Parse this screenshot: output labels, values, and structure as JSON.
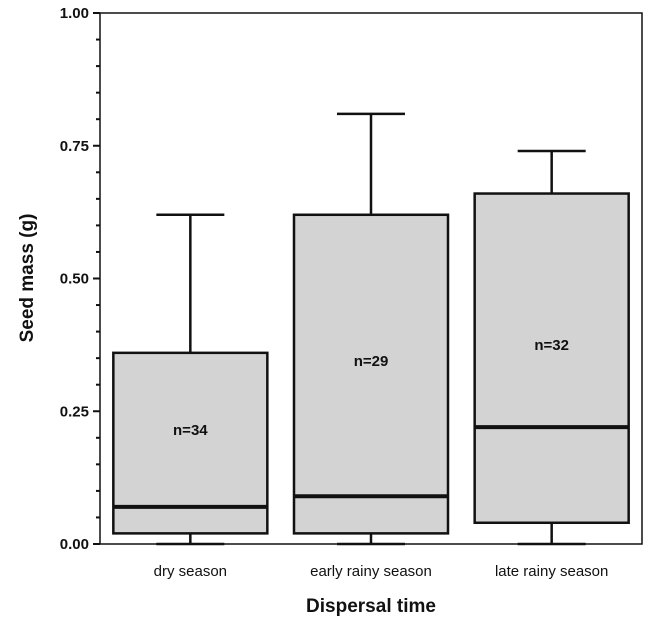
{
  "chart_data": {
    "type": "boxplot",
    "xlabel": "Dispersal time",
    "ylabel": "Seed mass (g)",
    "ylim": [
      0,
      1.0
    ],
    "yticks": [
      "0.00",
      "0.25",
      "0.50",
      "0.75",
      "1.00"
    ],
    "grid": false,
    "colors": {
      "box_fill": "#d3d3d3",
      "stroke": "#111111"
    },
    "categories": [
      "dry season",
      "early rainy season",
      "late rainy season"
    ],
    "boxes": [
      {
        "category": "dry season",
        "min": 0.0,
        "q1": 0.02,
        "median": 0.07,
        "q3": 0.36,
        "max": 0.62,
        "n_label": "n=34"
      },
      {
        "category": "early rainy season",
        "min": 0.0,
        "q1": 0.02,
        "median": 0.09,
        "q3": 0.62,
        "max": 0.81,
        "n_label": "n=29"
      },
      {
        "category": "late rainy season",
        "min": 0.0,
        "q1": 0.04,
        "median": 0.22,
        "q3": 0.66,
        "max": 0.74,
        "n_label": "n=32"
      }
    ]
  }
}
